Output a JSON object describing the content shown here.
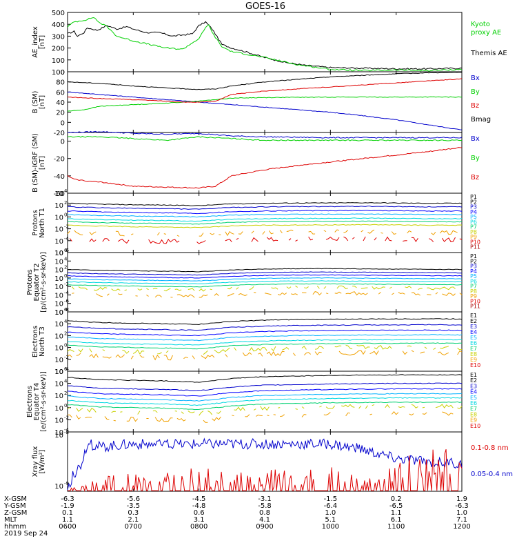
{
  "title": "GOES-16",
  "colors": {
    "black": "#000000",
    "blue": "#0000cc",
    "green": "#00d000",
    "red": "#dd0000",
    "ch": [
      "#000000",
      "#000000",
      "#0000cc",
      "#0000ff",
      "#00b0ff",
      "#00d8e0",
      "#00d070",
      "#c8d000",
      "#f0a000",
      "#e00000",
      "#aa0000"
    ]
  },
  "x_ticks": [
    "0600",
    "0700",
    "0800",
    "0900",
    "1000",
    "1100",
    "1200"
  ],
  "coords": {
    "labels": [
      "X-GSM",
      "Y-GSM",
      "Z-GSM",
      "MLT",
      "hhmm"
    ],
    "rows": [
      [
        "-6.3",
        "-5.6",
        "-4.5",
        "-3.1",
        "-1.5",
        "0.2",
        "1.9"
      ],
      [
        "-1.9",
        "-3.5",
        "-4.8",
        "-5.8",
        "-6.4",
        "-6.5",
        "-6.3"
      ],
      [
        "0.1",
        "0.3",
        "0.6",
        "0.8",
        "1.0",
        "1.1",
        "1.0"
      ],
      [
        "1.1",
        "2.1",
        "3.1",
        "4.1",
        "5.1",
        "6.1",
        "7.1"
      ],
      [
        "0600",
        "0700",
        "0800",
        "0900",
        "1000",
        "1100",
        "1200"
      ]
    ],
    "date": "2019 Sep 24"
  },
  "chart_data": [
    {
      "type": "line",
      "ylabel": [
        "AE_index",
        "[nT]"
      ],
      "ylim": [
        0,
        500
      ],
      "yticks": [
        "0",
        "100",
        "200",
        "300",
        "400",
        "500"
      ],
      "legend": [
        {
          "text": "Kyoto",
          "color": "green"
        },
        {
          "text": "proxy AE",
          "color": "green"
        },
        {
          "text": "Themis AE",
          "color": "black"
        }
      ],
      "series": [
        {
          "name": "Themis AE",
          "color": "black",
          "x": [
            6.0,
            6.1,
            6.15,
            6.25,
            6.3,
            6.45,
            6.6,
            6.75,
            6.9,
            7.0,
            7.2,
            7.4,
            7.6,
            7.75,
            7.9,
            8.0,
            8.1,
            8.2,
            8.35,
            8.5,
            8.7,
            9.0,
            9.3,
            9.6,
            10.0,
            10.5,
            11.0,
            11.5,
            12.0
          ],
          "y": [
            320,
            340,
            300,
            330,
            370,
            350,
            390,
            360,
            380,
            360,
            330,
            330,
            300,
            310,
            320,
            390,
            420,
            360,
            230,
            200,
            170,
            120,
            80,
            55,
            35,
            30,
            25,
            25,
            30
          ]
        },
        {
          "name": "Kyoto proxy AE",
          "color": "green",
          "x": [
            6.0,
            6.1,
            6.2,
            6.3,
            6.4,
            6.45,
            6.5,
            6.6,
            6.75,
            7.0,
            7.5,
            7.75,
            8.0,
            8.1,
            8.15,
            8.2,
            8.35,
            8.5,
            9.0,
            9.5,
            10.0,
            10.5,
            11.0,
            11.5,
            12.0
          ],
          "y": [
            380,
            420,
            430,
            440,
            460,
            430,
            410,
            380,
            300,
            260,
            200,
            190,
            280,
            370,
            400,
            330,
            210,
            170,
            120,
            60,
            20,
            10,
            15,
            10,
            20
          ]
        }
      ]
    },
    {
      "type": "line",
      "ylabel": [
        "B (SM)",
        "[nT]"
      ],
      "ylim": [
        -20,
        100
      ],
      "yticks": [
        "-20",
        "0",
        "20",
        "40",
        "60",
        "80",
        "100"
      ],
      "legend": [
        {
          "text": "Bx",
          "color": "blue"
        },
        {
          "text": "By",
          "color": "green"
        },
        {
          "text": "Bz",
          "color": "red"
        },
        {
          "text": "Bmag",
          "color": "black"
        }
      ],
      "series": [
        {
          "name": "Bx",
          "color": "blue",
          "x": [
            6.0,
            6.5,
            7.0,
            7.5,
            8.0,
            8.5,
            9.0,
            9.5,
            10.0,
            10.5,
            11.0,
            11.5,
            12.0
          ],
          "y": [
            60,
            55,
            50,
            45,
            40,
            35,
            30,
            25,
            20,
            13,
            5,
            -5,
            -15
          ]
        },
        {
          "name": "By",
          "color": "green",
          "x": [
            6.0,
            6.25,
            6.5,
            7.0,
            7.5,
            8.0,
            8.25,
            8.5,
            9.0,
            10.0,
            11.0,
            12.0
          ],
          "y": [
            22,
            25,
            32,
            35,
            38,
            42,
            45,
            48,
            49,
            50,
            50,
            50
          ]
        },
        {
          "name": "Bz",
          "color": "red",
          "x": [
            6.0,
            6.5,
            7.0,
            7.5,
            7.75,
            8.0,
            8.25,
            8.5,
            9.0,
            9.5,
            10.0,
            10.5,
            11.0,
            11.5,
            12.0
          ],
          "y": [
            50,
            47,
            45,
            42,
            40,
            40,
            42,
            55,
            62,
            66,
            70,
            74,
            78,
            82,
            86
          ]
        },
        {
          "name": "Bmag",
          "color": "black",
          "x": [
            6.0,
            6.5,
            7.0,
            7.5,
            8.0,
            8.25,
            8.5,
            9.0,
            9.5,
            10.0,
            10.5,
            11.0,
            11.5,
            12.0
          ],
          "y": [
            80,
            77,
            72,
            68,
            65,
            66,
            72,
            80,
            85,
            90,
            93,
            96,
            98,
            99
          ]
        }
      ]
    },
    {
      "type": "line",
      "ylabel": [
        "B (SM)-IGRF (SM)",
        "[nT]"
      ],
      "ylim": [
        -60,
        10
      ],
      "yticks": [
        "-60",
        "-40",
        "-20",
        "0"
      ],
      "legend": [
        {
          "text": "Bx",
          "color": "blue"
        },
        {
          "text": "By",
          "color": "green"
        },
        {
          "text": "Bz",
          "color": "red"
        }
      ],
      "series": [
        {
          "name": "Bx",
          "color": "blue",
          "x": [
            6.0,
            6.5,
            7.0,
            7.5,
            8.0,
            8.5,
            9.0,
            10.0,
            11.0,
            12.0
          ],
          "y": [
            10,
            11,
            9,
            8,
            9,
            6,
            5,
            4,
            4,
            4
          ]
        },
        {
          "name": "By",
          "color": "green",
          "x": [
            6.0,
            6.5,
            7.0,
            7.5,
            8.0,
            8.5,
            9.0,
            10.0,
            11.0,
            12.0
          ],
          "y": [
            5,
            5,
            3,
            1,
            5,
            3,
            1,
            1,
            1,
            1
          ]
        },
        {
          "name": "Bz",
          "color": "red",
          "x": [
            6.0,
            6.1,
            6.3,
            6.6,
            7.0,
            7.5,
            8.0,
            8.25,
            8.5,
            9.0,
            9.5,
            10.0,
            10.5,
            11.0,
            11.5,
            12.0
          ],
          "y": [
            -40,
            -44,
            -46,
            -48,
            -52,
            -53,
            -54,
            -52,
            -40,
            -33,
            -28,
            -24,
            -20,
            -16,
            -12,
            -7
          ]
        }
      ]
    },
    {
      "type": "line",
      "ylog": true,
      "ylabel": [
        "Protons",
        "North T1"
      ],
      "ylim_exp": [
        -6,
        4
      ],
      "yticks": [
        "10-6",
        "10-4",
        "10-2",
        "100",
        "102",
        "104"
      ],
      "legend_x": "channels",
      "series_names": [
        "P1",
        "P2",
        "P3",
        "P4",
        "P5",
        "P6",
        "P7",
        "P8",
        "P9",
        "P10",
        "P11"
      ],
      "base_log": [
        2.3,
        1.7,
        1.0,
        0.4,
        -0.3,
        -0.8,
        -1.4,
        -2.6,
        -3.8
      ],
      "x": [
        6.0,
        6.5,
        7.0,
        7.5,
        8.0,
        8.5,
        9.0,
        9.5,
        10.0,
        10.5,
        11.0,
        11.5,
        12.0
      ],
      "dip": [
        0,
        -0.15,
        -0.25,
        -0.3,
        -0.4,
        -0.1,
        0,
        0.05,
        0.05,
        0.1,
        0.05,
        0,
        0
      ]
    },
    {
      "type": "line",
      "ylog": true,
      "ylabel": [
        "Protons",
        "Equator T2",
        "[p/(cm²-s-sr-keV)]"
      ],
      "ylim_exp": [
        -8,
        6
      ],
      "yticks": [
        "10-8",
        "10-6",
        "10-4",
        "10-2",
        "100",
        "102",
        "104",
        "106"
      ],
      "series_names": [
        "P1",
        "P2",
        "P3",
        "P4",
        "P5",
        "P6",
        "P7",
        "P8",
        "P9",
        "P10",
        "P11"
      ],
      "base_log": [
        2.0,
        1.2,
        0.5,
        -0.2,
        -0.9,
        -1.6,
        -2.4,
        -3.8
      ],
      "x": [
        6.0,
        6.5,
        7.0,
        7.5,
        8.0,
        8.5,
        9.0,
        9.5,
        10.0,
        10.5,
        11.0,
        11.5,
        12.0
      ],
      "dip": [
        0,
        -0.2,
        -0.3,
        -0.4,
        -0.5,
        -0.1,
        0.1,
        0.2,
        0.2,
        0.15,
        0.1,
        0.05,
        0
      ]
    },
    {
      "type": "line",
      "ylog": true,
      "ylabel": [
        "Electrons",
        "North T3"
      ],
      "ylim_exp": [
        -4,
        6
      ],
      "yticks": [
        "10-4",
        "10-2",
        "100",
        "102",
        "104",
        "106"
      ],
      "series_names": [
        "E1",
        "E2",
        "E3",
        "E4",
        "E5",
        "E6",
        "E7",
        "E8",
        "E9",
        "E10"
      ],
      "base_log": [
        4.5,
        3.5,
        2.6,
        1.8,
        1.0,
        0.4,
        -0.3,
        -1.2
      ],
      "x": [
        6.0,
        6.5,
        7.0,
        7.5,
        8.0,
        8.5,
        9.0,
        9.5,
        10.0,
        10.5,
        11.0,
        11.5,
        12.0
      ],
      "dip": [
        0,
        -0.3,
        -0.4,
        -0.5,
        -0.6,
        -0.1,
        0.1,
        0.2,
        0.25,
        0.3,
        0.3,
        0.35,
        0.3
      ]
    },
    {
      "type": "line",
      "ylog": true,
      "ylabel": [
        "Electrons",
        "Equator T4",
        "[e/(cm²-s-sr-keV)]"
      ],
      "ylim_exp": [
        -4,
        6
      ],
      "yticks": [
        "10-4",
        "10-2",
        "100",
        "102",
        "104",
        "106"
      ],
      "series_names": [
        "E1",
        "E2",
        "E3",
        "E4",
        "E5",
        "E6",
        "E7",
        "E8",
        "E9",
        "E10"
      ],
      "base_log": [
        5.0,
        3.6,
        2.7,
        1.9,
        1.2,
        0.5,
        -0.2,
        -1.4
      ],
      "x": [
        6.0,
        6.5,
        7.0,
        7.5,
        8.0,
        8.5,
        9.0,
        9.5,
        10.0,
        10.5,
        11.0,
        11.5,
        12.0
      ],
      "dip": [
        0,
        -0.4,
        -0.5,
        -0.6,
        -0.8,
        -0.2,
        0.1,
        0.2,
        0.3,
        0.35,
        0.4,
        0.4,
        0.4
      ]
    },
    {
      "type": "line",
      "ylog": true,
      "ylabel": [
        "Xray flux",
        "[W/m²]"
      ],
      "ylim_exp": [
        -9,
        -8
      ],
      "yticks": [
        "10-9",
        "10-8"
      ],
      "legend": [
        {
          "text": "0.1-0.8 nm",
          "color": "red"
        },
        {
          "text": "0.05-0.4 nm",
          "color": "blue"
        }
      ],
      "series": [
        {
          "name": "0.05-0.4 nm",
          "color": "blue",
          "x": [
            6.0,
            6.1,
            6.2,
            6.3,
            6.5,
            7.0,
            7.5,
            8.0,
            8.5,
            9.0,
            9.5,
            10.0,
            10.5,
            11.0,
            11.5,
            12.0
          ],
          "y_frac": [
            0.05,
            0.3,
            0.45,
            0.8,
            0.75,
            0.8,
            0.78,
            0.8,
            0.8,
            0.8,
            0.8,
            0.8,
            0.7,
            0.55,
            0.5,
            0.45
          ]
        },
        {
          "name": "0.1-0.8 nm",
          "color": "red",
          "x": [
            6.0,
            6.5,
            7.0,
            7.5,
            8.0,
            8.5,
            9.0,
            9.5,
            10.0,
            10.5,
            11.0,
            11.5,
            12.0
          ],
          "y_frac": [
            0.02,
            0.15,
            0.2,
            0.2,
            0.25,
            0.2,
            0.25,
            0.2,
            0.3,
            0.1,
            0.3,
            0.45,
            0.4
          ]
        }
      ]
    }
  ]
}
